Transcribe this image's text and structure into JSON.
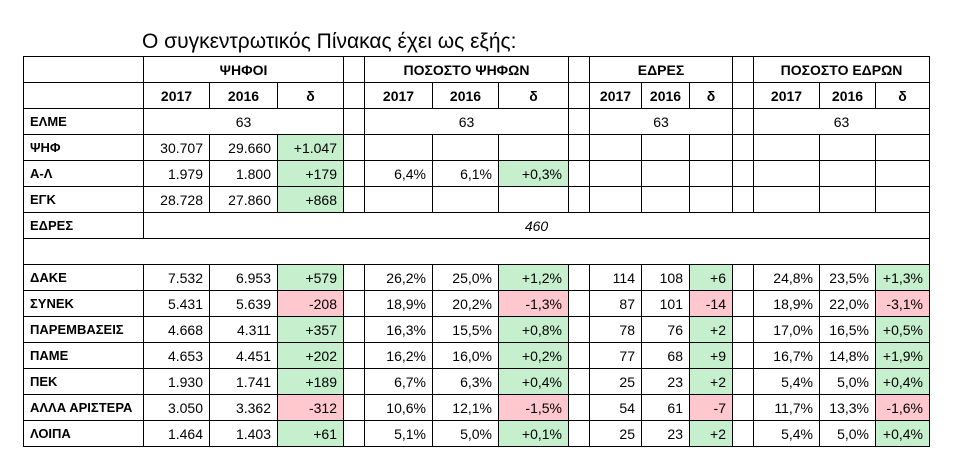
{
  "title": "Ο συγκεντρωτικός Πίνακας έχει ως εξής:",
  "colors": {
    "positive": "#c6efce",
    "negative": "#ffc7ce"
  },
  "headers": {
    "groups": [
      "ΨΗΦΟΙ",
      "ΠΟΣΟΣΤΟ ΨΗΦΩΝ",
      "ΕΔΡΕΣ",
      "ΠΟΣΟΣΤΟ ΕΔΡΩΝ"
    ],
    "sub": [
      "2017",
      "2016",
      "δ"
    ]
  },
  "summary": {
    "elme": {
      "label": "ΕΛΜΕ",
      "value": "63"
    },
    "psif": {
      "label": "ΨΗΦ",
      "v2017": "30.707",
      "v2016": "29.660",
      "delta": "+1.047"
    },
    "al": {
      "label": "Α-Λ",
      "v2017": "1.979",
      "v2016": "1.800",
      "delta": "+179",
      "p2017": "6,4%",
      "p2016": "6,1%",
      "pdelta": "+0,3%"
    },
    "egk": {
      "label": "ΕΓΚ",
      "v2017": "28.728",
      "v2016": "27.860",
      "delta": "+868"
    },
    "edres": {
      "label": "ΕΔΡΕΣ",
      "value": "460"
    }
  },
  "rows": [
    {
      "label": "ΔΑΚΕ",
      "v": [
        "7.532",
        "6.953",
        "+579"
      ],
      "p": [
        "26,2%",
        "25,0%",
        "+1,2%"
      ],
      "s": [
        "114",
        "108",
        "+6"
      ],
      "sp": [
        "24,8%",
        "23,5%",
        "+1,3%"
      ],
      "sign": [
        "pos",
        "pos",
        "pos",
        "pos"
      ]
    },
    {
      "label": "ΣΥΝΕΚ",
      "v": [
        "5.431",
        "5.639",
        "-208"
      ],
      "p": [
        "18,9%",
        "20,2%",
        "-1,3%"
      ],
      "s": [
        "87",
        "101",
        "-14"
      ],
      "sp": [
        "18,9%",
        "22,0%",
        "-3,1%"
      ],
      "sign": [
        "neg",
        "neg",
        "neg",
        "neg"
      ]
    },
    {
      "label": "ΠΑΡΕΜΒΑΣΕΙΣ",
      "v": [
        "4.668",
        "4.311",
        "+357"
      ],
      "p": [
        "16,3%",
        "15,5%",
        "+0,8%"
      ],
      "s": [
        "78",
        "76",
        "+2"
      ],
      "sp": [
        "17,0%",
        "16,5%",
        "+0,5%"
      ],
      "sign": [
        "pos",
        "pos",
        "pos",
        "pos"
      ]
    },
    {
      "label": "ΠΑΜΕ",
      "v": [
        "4.653",
        "4.451",
        "+202"
      ],
      "p": [
        "16,2%",
        "16,0%",
        "+0,2%"
      ],
      "s": [
        "77",
        "68",
        "+9"
      ],
      "sp": [
        "16,7%",
        "14,8%",
        "+1,9%"
      ],
      "sign": [
        "pos",
        "pos",
        "pos",
        "pos"
      ]
    },
    {
      "label": "ΠΕΚ",
      "v": [
        "1.930",
        "1.741",
        "+189"
      ],
      "p": [
        "6,7%",
        "6,3%",
        "+0,4%"
      ],
      "s": [
        "25",
        "23",
        "+2"
      ],
      "sp": [
        "5,4%",
        "5,0%",
        "+0,4%"
      ],
      "sign": [
        "pos",
        "pos",
        "pos",
        "pos"
      ]
    },
    {
      "label": "ΑΛΛΑ ΑΡΙΣΤΕΡΑ",
      "v": [
        "3.050",
        "3.362",
        "-312"
      ],
      "p": [
        "10,6%",
        "12,1%",
        "-1,5%"
      ],
      "s": [
        "54",
        "61",
        "-7"
      ],
      "sp": [
        "11,7%",
        "13,3%",
        "-1,6%"
      ],
      "sign": [
        "neg",
        "neg",
        "neg",
        "neg"
      ]
    },
    {
      "label": "ΛΟΙΠΑ",
      "v": [
        "1.464",
        "1.403",
        "+61"
      ],
      "p": [
        "5,1%",
        "5,0%",
        "+0,1%"
      ],
      "s": [
        "25",
        "23",
        "+2"
      ],
      "sp": [
        "5,4%",
        "5,0%",
        "+0,4%"
      ],
      "sign": [
        "pos",
        "pos",
        "pos",
        "pos"
      ]
    }
  ]
}
